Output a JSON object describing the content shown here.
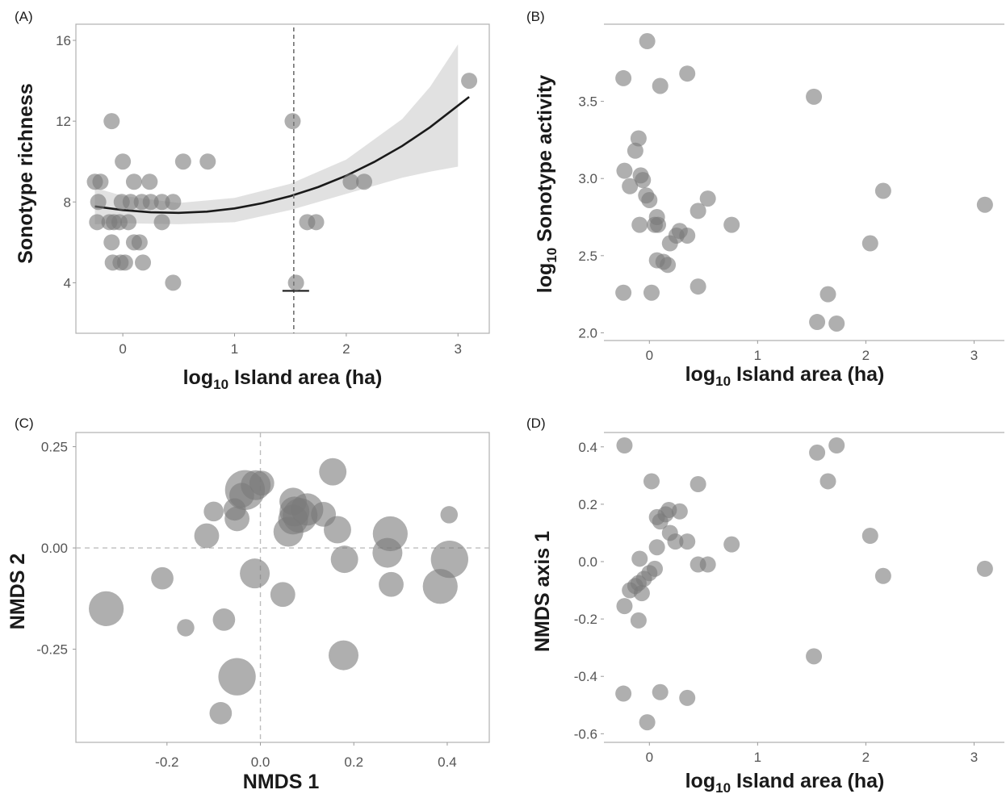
{
  "chart_data": [
    {
      "panel": "(A)",
      "type": "scatter",
      "xlabel_main": "log",
      "xlabel_sub": "10",
      "xlabel_rest": " Island area (ha)",
      "ylabel": "Sonotype richness",
      "xlim": [
        -0.42,
        3.28
      ],
      "ylim": [
        1.5,
        16.8
      ],
      "xticks": [
        0,
        1,
        2,
        3
      ],
      "xtick_labels": [
        "0",
        "1",
        "2",
        "3"
      ],
      "yticks": [
        4,
        8,
        12,
        16
      ],
      "ytick_labels": [
        "4",
        "8",
        "12",
        "16"
      ],
      "vline_x": 1.53,
      "points": [
        {
          "x": -0.25,
          "y": 9
        },
        {
          "x": -0.2,
          "y": 9
        },
        {
          "x": -0.22,
          "y": 8
        },
        {
          "x": -0.23,
          "y": 7
        },
        {
          "x": -0.12,
          "y": 7
        },
        {
          "x": -0.08,
          "y": 7
        },
        {
          "x": -0.1,
          "y": 6
        },
        {
          "x": -0.09,
          "y": 5
        },
        {
          "x": -0.02,
          "y": 5
        },
        {
          "x": 0.02,
          "y": 5
        },
        {
          "x": -0.03,
          "y": 7
        },
        {
          "x": 0.05,
          "y": 7
        },
        {
          "x": 0.1,
          "y": 6
        },
        {
          "x": 0.15,
          "y": 6
        },
        {
          "x": 0.18,
          "y": 5
        },
        {
          "x": -0.01,
          "y": 8
        },
        {
          "x": 0.07,
          "y": 8
        },
        {
          "x": 0.17,
          "y": 8
        },
        {
          "x": 0.25,
          "y": 8
        },
        {
          "x": 0.35,
          "y": 8
        },
        {
          "x": 0.45,
          "y": 8
        },
        {
          "x": 0.35,
          "y": 7
        },
        {
          "x": 0.1,
          "y": 9
        },
        {
          "x": 0.24,
          "y": 9
        },
        {
          "x": 0.0,
          "y": 10
        },
        {
          "x": -0.1,
          "y": 12
        },
        {
          "x": 0.45,
          "y": 4
        },
        {
          "x": 0.54,
          "y": 10
        },
        {
          "x": 0.76,
          "y": 10
        },
        {
          "x": 1.52,
          "y": 12
        },
        {
          "x": 1.55,
          "y": 4
        },
        {
          "x": 1.65,
          "y": 7
        },
        {
          "x": 1.73,
          "y": 7
        },
        {
          "x": 2.04,
          "y": 9
        },
        {
          "x": 2.16,
          "y": 9
        },
        {
          "x": 3.1,
          "y": 14
        }
      ],
      "fit": [
        {
          "x": -0.25,
          "y": 7.78
        },
        {
          "x": 0.0,
          "y": 7.6
        },
        {
          "x": 0.25,
          "y": 7.49
        },
        {
          "x": 0.5,
          "y": 7.46
        },
        {
          "x": 0.75,
          "y": 7.52
        },
        {
          "x": 1.0,
          "y": 7.68
        },
        {
          "x": 1.25,
          "y": 7.94
        },
        {
          "x": 1.5,
          "y": 8.29
        },
        {
          "x": 1.75,
          "y": 8.74
        },
        {
          "x": 2.0,
          "y": 9.3
        },
        {
          "x": 2.25,
          "y": 9.98
        },
        {
          "x": 2.5,
          "y": 10.77
        },
        {
          "x": 2.75,
          "y": 11.7
        },
        {
          "x": 3.1,
          "y": 13.2
        }
      ],
      "band_upper": [
        {
          "x": -0.25,
          "y": 8.7
        },
        {
          "x": 0.0,
          "y": 8.3
        },
        {
          "x": 0.5,
          "y": 7.95
        },
        {
          "x": 1.0,
          "y": 8.2
        },
        {
          "x": 1.5,
          "y": 8.9
        },
        {
          "x": 2.0,
          "y": 10.1
        },
        {
          "x": 2.5,
          "y": 12.1
        },
        {
          "x": 2.75,
          "y": 13.7
        },
        {
          "x": 3.0,
          "y": 15.8
        }
      ],
      "band_lower": [
        {
          "x": -0.25,
          "y": 6.9
        },
        {
          "x": 0.0,
          "y": 6.95
        },
        {
          "x": 0.5,
          "y": 6.9
        },
        {
          "x": 1.0,
          "y": 7.0
        },
        {
          "x": 1.5,
          "y": 7.6
        },
        {
          "x": 2.0,
          "y": 8.4
        },
        {
          "x": 2.5,
          "y": 9.2
        },
        {
          "x": 2.75,
          "y": 9.5
        },
        {
          "x": 3.0,
          "y": 9.75
        }
      ]
    },
    {
      "panel": "(B)",
      "type": "scatter",
      "xlabel_main": "log",
      "xlabel_sub": "10",
      "xlabel_rest": " Island area (ha)",
      "ylabel_main": "log",
      "ylabel_sub": "10",
      "ylabel_rest": " Sonotype activity",
      "xlim": [
        -0.42,
        3.28
      ],
      "ylim": [
        1.95,
        4.0
      ],
      "xticks": [
        0,
        1,
        2,
        3
      ],
      "xtick_labels": [
        "0",
        "1",
        "2",
        "3"
      ],
      "yticks": [
        2.0,
        2.5,
        3.0,
        3.5
      ],
      "ytick_labels": [
        "2.0",
        "2.5",
        "3.0",
        "3.5"
      ],
      "points": [
        {
          "x": -0.02,
          "y": 3.89
        },
        {
          "x": -0.24,
          "y": 3.65
        },
        {
          "x": 0.1,
          "y": 3.6
        },
        {
          "x": 0.35,
          "y": 3.68
        },
        {
          "x": 1.52,
          "y": 3.53
        },
        {
          "x": -0.1,
          "y": 3.26
        },
        {
          "x": -0.13,
          "y": 3.18
        },
        {
          "x": -0.23,
          "y": 3.05
        },
        {
          "x": -0.08,
          "y": 3.02
        },
        {
          "x": -0.06,
          "y": 2.99
        },
        {
          "x": -0.18,
          "y": 2.95
        },
        {
          "x": -0.03,
          "y": 2.89
        },
        {
          "x": 0.0,
          "y": 2.86
        },
        {
          "x": 0.54,
          "y": 2.87
        },
        {
          "x": 2.16,
          "y": 2.92
        },
        {
          "x": 3.1,
          "y": 2.83
        },
        {
          "x": 0.07,
          "y": 2.75
        },
        {
          "x": 0.45,
          "y": 2.79
        },
        {
          "x": 0.76,
          "y": 2.7
        },
        {
          "x": 0.05,
          "y": 2.7
        },
        {
          "x": 0.08,
          "y": 2.7
        },
        {
          "x": -0.09,
          "y": 2.7
        },
        {
          "x": 0.28,
          "y": 2.66
        },
        {
          "x": 0.25,
          "y": 2.63
        },
        {
          "x": 0.35,
          "y": 2.63
        },
        {
          "x": 0.19,
          "y": 2.58
        },
        {
          "x": 0.07,
          "y": 2.47
        },
        {
          "x": 0.13,
          "y": 2.46
        },
        {
          "x": 0.17,
          "y": 2.44
        },
        {
          "x": 0.45,
          "y": 2.3
        },
        {
          "x": -0.24,
          "y": 2.26
        },
        {
          "x": 0.02,
          "y": 2.26
        },
        {
          "x": 2.04,
          "y": 2.58
        },
        {
          "x": 1.65,
          "y": 2.25
        },
        {
          "x": 1.55,
          "y": 2.07
        },
        {
          "x": 1.73,
          "y": 2.06
        }
      ]
    },
    {
      "panel": "(C)",
      "type": "scatter",
      "xlabel": "NMDS 1",
      "ylabel": "NMDS 2",
      "xlim": [
        -0.395,
        0.49
      ],
      "ylim": [
        -0.48,
        0.285
      ],
      "xticks": [
        -0.2,
        0.0,
        0.2,
        0.4
      ],
      "xtick_labels": [
        "-0.2",
        "0.0",
        "0.2",
        "0.4"
      ],
      "yticks": [
        -0.25,
        0.0,
        0.25
      ],
      "ytick_labels": [
        "-0.25",
        "0.00",
        "0.25"
      ],
      "hline_y": 0.0,
      "vline_x": 0.0,
      "points": [
        {
          "x": -0.033,
          "y": 0.143,
          "size": 14
        },
        {
          "x": -0.01,
          "y": 0.155,
          "size": 10
        },
        {
          "x": 0.003,
          "y": 0.16,
          "size": 8
        },
        {
          "x": -0.04,
          "y": 0.13,
          "size": 8
        },
        {
          "x": -0.055,
          "y": 0.095,
          "size": 7
        },
        {
          "x": -0.1,
          "y": 0.09,
          "size": 6
        },
        {
          "x": -0.05,
          "y": 0.072,
          "size": 8
        },
        {
          "x": -0.115,
          "y": 0.03,
          "size": 8
        },
        {
          "x": 0.155,
          "y": 0.188,
          "size": 9
        },
        {
          "x": 0.07,
          "y": 0.115,
          "size": 9
        },
        {
          "x": 0.073,
          "y": 0.09,
          "size": 10
        },
        {
          "x": 0.1,
          "y": 0.095,
          "size": 11
        },
        {
          "x": 0.085,
          "y": 0.08,
          "size": 12
        },
        {
          "x": 0.07,
          "y": 0.07,
          "size": 10
        },
        {
          "x": 0.135,
          "y": 0.083,
          "size": 8
        },
        {
          "x": 0.06,
          "y": 0.04,
          "size": 10
        },
        {
          "x": 0.165,
          "y": 0.045,
          "size": 9
        },
        {
          "x": 0.278,
          "y": 0.035,
          "size": 12
        },
        {
          "x": 0.272,
          "y": -0.012,
          "size": 10
        },
        {
          "x": 0.18,
          "y": -0.028,
          "size": 9
        },
        {
          "x": 0.405,
          "y": -0.028,
          "size": 13
        },
        {
          "x": 0.385,
          "y": -0.095,
          "size": 12
        },
        {
          "x": 0.28,
          "y": -0.09,
          "size": 8
        },
        {
          "x": 0.404,
          "y": 0.082,
          "size": 5
        },
        {
          "x": -0.012,
          "y": -0.063,
          "size": 10
        },
        {
          "x": 0.048,
          "y": -0.115,
          "size": 8
        },
        {
          "x": -0.21,
          "y": -0.075,
          "size": 7
        },
        {
          "x": -0.33,
          "y": -0.15,
          "size": 12
        },
        {
          "x": -0.16,
          "y": -0.197,
          "size": 5
        },
        {
          "x": -0.078,
          "y": -0.177,
          "size": 7
        },
        {
          "x": -0.05,
          "y": -0.318,
          "size": 13
        },
        {
          "x": 0.178,
          "y": -0.265,
          "size": 10
        },
        {
          "x": -0.085,
          "y": -0.408,
          "size": 7
        }
      ]
    },
    {
      "panel": "(D)",
      "type": "scatter",
      "xlabel_main": "log",
      "xlabel_sub": "10",
      "xlabel_rest": " Island area (ha)",
      "ylabel": "NMDS axis 1",
      "xlim": [
        -0.42,
        3.28
      ],
      "ylim": [
        -0.63,
        0.45
      ],
      "xticks": [
        0,
        1,
        2,
        3
      ],
      "xtick_labels": [
        "0",
        "1",
        "2",
        "3"
      ],
      "yticks": [
        -0.6,
        -0.4,
        -0.2,
        0.0,
        0.2,
        0.4
      ],
      "ytick_labels": [
        "-0.6",
        "-0.4",
        "-0.2",
        "0.0",
        "0.2",
        "0.4"
      ],
      "points": [
        {
          "x": -0.23,
          "y": 0.405
        },
        {
          "x": 0.02,
          "y": 0.28
        },
        {
          "x": 0.45,
          "y": 0.27
        },
        {
          "x": 1.55,
          "y": 0.38
        },
        {
          "x": 1.73,
          "y": 0.405
        },
        {
          "x": 1.65,
          "y": 0.28
        },
        {
          "x": 0.07,
          "y": 0.155
        },
        {
          "x": 0.1,
          "y": 0.14
        },
        {
          "x": 0.15,
          "y": 0.165
        },
        {
          "x": 0.18,
          "y": 0.18
        },
        {
          "x": 0.28,
          "y": 0.175
        },
        {
          "x": 0.19,
          "y": 0.1
        },
        {
          "x": 0.24,
          "y": 0.07
        },
        {
          "x": 0.35,
          "y": 0.07
        },
        {
          "x": 0.07,
          "y": 0.05
        },
        {
          "x": 0.76,
          "y": 0.06
        },
        {
          "x": 2.04,
          "y": 0.09
        },
        {
          "x": -0.09,
          "y": 0.01
        },
        {
          "x": 0.45,
          "y": -0.01
        },
        {
          "x": 0.54,
          "y": -0.01
        },
        {
          "x": 0.05,
          "y": -0.025
        },
        {
          "x": 0.0,
          "y": -0.04
        },
        {
          "x": -0.05,
          "y": -0.06
        },
        {
          "x": -0.1,
          "y": -0.075
        },
        {
          "x": -0.13,
          "y": -0.085
        },
        {
          "x": -0.18,
          "y": -0.1
        },
        {
          "x": -0.07,
          "y": -0.11
        },
        {
          "x": 2.16,
          "y": -0.05
        },
        {
          "x": 3.1,
          "y": -0.025
        },
        {
          "x": -0.23,
          "y": -0.155
        },
        {
          "x": -0.1,
          "y": -0.205
        },
        {
          "x": 1.52,
          "y": -0.33
        },
        {
          "x": -0.24,
          "y": -0.46
        },
        {
          "x": 0.1,
          "y": -0.455
        },
        {
          "x": 0.35,
          "y": -0.475
        },
        {
          "x": -0.02,
          "y": -0.56
        }
      ]
    }
  ]
}
